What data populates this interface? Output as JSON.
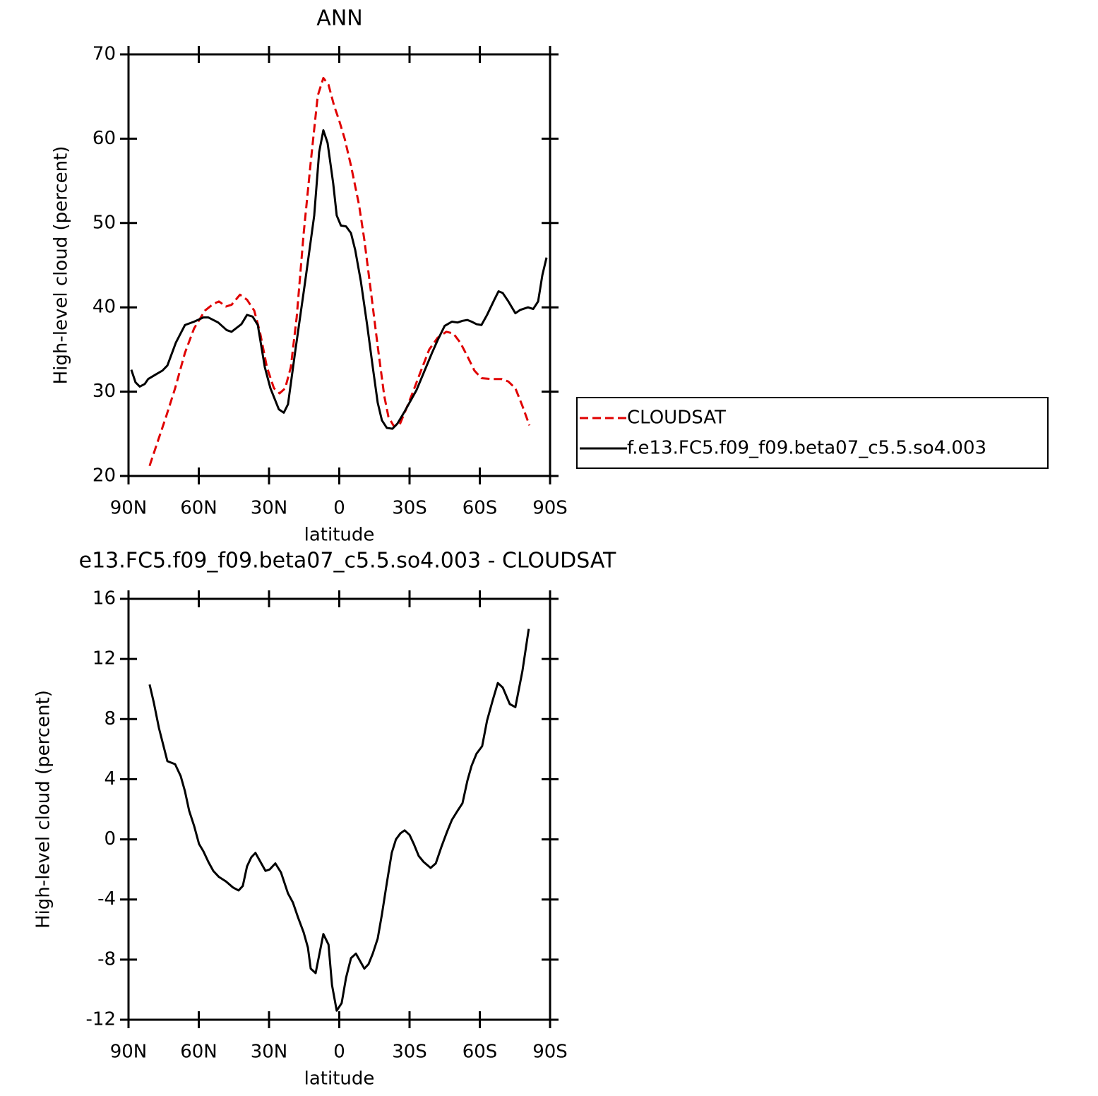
{
  "chart_data": [
    {
      "type": "line",
      "title": "ANN",
      "x_label": "latitude",
      "y_label": "High-level cloud (percent)",
      "xlim": [
        90,
        -90
      ],
      "xticks": [
        {
          "value": 90,
          "label": "90N"
        },
        {
          "value": 60,
          "label": "60N"
        },
        {
          "value": 30,
          "label": "30N"
        },
        0,
        {
          "value": -30,
          "label": "30S"
        },
        {
          "value": -60,
          "label": "60S"
        },
        {
          "value": -90,
          "label": "90S"
        }
      ],
      "ylim": [
        20,
        70
      ],
      "yticks": [
        20,
        30,
        40,
        50,
        60,
        70
      ],
      "legend": "right",
      "series": [
        {
          "name": "CLOUDSAT",
          "color": "#e00000",
          "line_style": "dashed",
          "x": [
            81,
            78,
            74,
            70.1,
            65.9,
            62,
            57.4,
            53.8,
            51.4,
            48.4,
            46,
            42.4,
            39.4,
            36.3,
            33.9,
            30.9,
            27.9,
            25.5,
            23.1,
            20.7,
            18.2,
            15.2,
            12.2,
            9.2,
            6.8,
            4.6,
            2.2,
            0.1,
            -2.3,
            -5,
            -8.4,
            -10.7,
            -13.4,
            -16.4,
            -19.2,
            -21,
            -23.3,
            -25.8,
            -28.5,
            -31.5,
            -34.5,
            -38.4,
            -42,
            -45.7,
            -48.7,
            -51.7,
            -54.7,
            -57.7,
            -60.7,
            -64.6,
            -69.2,
            -72.2,
            -75.2,
            -78.2,
            -81.2
          ],
          "values": [
            21.2,
            23.7,
            27,
            30.4,
            34.6,
            37.5,
            39.6,
            40.4,
            40.7,
            40.1,
            40.3,
            41.5,
            40.9,
            39.6,
            37.1,
            32.9,
            30.4,
            29.8,
            30.4,
            32.9,
            38.8,
            48.8,
            57.2,
            65.1,
            67.2,
            66.4,
            63.9,
            62.2,
            60,
            56.8,
            52.2,
            48,
            42.1,
            35.4,
            29.5,
            27,
            25.9,
            26.1,
            27.9,
            30,
            32.2,
            35,
            36.4,
            37.1,
            36.9,
            35.8,
            34.2,
            32.5,
            31.6,
            31.5,
            31.5,
            31.2,
            30.4,
            28.3,
            26
          ]
        },
        {
          "name": "f.e13.FC5.f09_f09.beta07_c5.5.so4.003",
          "color": "#000000",
          "line_style": "solid",
          "x": [
            88.8,
            87,
            85.2,
            83.1,
            81.6,
            78,
            75.5,
            73.4,
            69.8,
            65.9,
            62,
            58,
            55.9,
            51.7,
            48.1,
            46,
            41.8,
            39.4,
            37,
            34.8,
            31.8,
            29.4,
            25.8,
            23.7,
            21.9,
            18.9,
            14.6,
            10.7,
            8.6,
            6.8,
            5,
            2.6,
            1.1,
            -0.7,
            -2.9,
            -5,
            -6.8,
            -9.2,
            -11.9,
            -14.3,
            -16.4,
            -18.2,
            -20.3,
            -22.7,
            -24.8,
            -27.6,
            -30,
            -33,
            -36,
            -39.6,
            -42,
            -45,
            -48.1,
            -50.5,
            -52.6,
            -54.7,
            -56.5,
            -58.6,
            -60.7,
            -63.1,
            -66.2,
            -68,
            -69.8,
            -72.2,
            -75.2,
            -77.3,
            -80.6,
            -82.8,
            -84.9,
            -86.7,
            -88.5
          ],
          "values": [
            32.6,
            31.1,
            30.6,
            30.9,
            31.5,
            32.1,
            32.5,
            33.1,
            35.8,
            37.9,
            38.3,
            38.8,
            38.8,
            38.2,
            37.3,
            37.1,
            38,
            39.1,
            38.9,
            37.9,
            32.9,
            30.4,
            27.9,
            27.5,
            28.5,
            34.6,
            43,
            50.9,
            58.4,
            61,
            59.5,
            54.7,
            50.9,
            49.7,
            49.6,
            48.8,
            46.8,
            43.1,
            37.9,
            32.9,
            28.7,
            26.6,
            25.7,
            25.6,
            26.2,
            27.5,
            28.7,
            30.2,
            32.2,
            34.6,
            36.1,
            37.8,
            38.3,
            38.2,
            38.4,
            38.5,
            38.3,
            38,
            37.9,
            39.1,
            40.9,
            41.9,
            41.7,
            40.7,
            39.3,
            39.7,
            40,
            39.8,
            40.7,
            43.8,
            45.9
          ]
        }
      ]
    },
    {
      "type": "line",
      "title": "e13.FC5.f09_f09.beta07_c5.5.so4.003 - CLOUDSAT",
      "x_label": "latitude",
      "y_label": "High-level cloud (percent)",
      "xlim": [
        90,
        -90
      ],
      "xticks": [
        {
          "value": 90,
          "label": "90N"
        },
        {
          "value": 60,
          "label": "60N"
        },
        {
          "value": 30,
          "label": "30N"
        },
        0,
        {
          "value": -30,
          "label": "30S"
        },
        {
          "value": -60,
          "label": "60S"
        },
        {
          "value": -90,
          "label": "90S"
        }
      ],
      "ylim": [
        -12,
        16
      ],
      "yticks": [
        -12,
        -8,
        -4,
        0,
        4,
        8,
        12,
        16
      ],
      "series": [
        {
          "color": "#000000",
          "line_style": "solid",
          "x": [
            81,
            79.2,
            77,
            75.2,
            73.4,
            70.1,
            67.7,
            65.9,
            64.1,
            62,
            59.9,
            58,
            55.9,
            53.8,
            51.4,
            48.4,
            45.4,
            43,
            41.2,
            39.4,
            37.6,
            35.8,
            33.3,
            31.5,
            29.7,
            27.3,
            24.9,
            21.9,
            19.8,
            17.6,
            15.2,
            13.4,
            12.2,
            10.1,
            6.8,
            4.6,
            3.1,
            1.1,
            -1,
            -2.9,
            -5,
            -7.1,
            -8.9,
            -10.7,
            -12.5,
            -14.3,
            -16.4,
            -18.2,
            -20.3,
            -22.4,
            -24.2,
            -26.1,
            -27.9,
            -30,
            -31.8,
            -33.9,
            -36,
            -39,
            -41.2,
            -43.6,
            -46,
            -48.1,
            -50.5,
            -52.6,
            -54.7,
            -56.5,
            -58.6,
            -61,
            -63.1,
            -65.6,
            -67.7,
            -69.8,
            -72.8,
            -75.2,
            -78.2,
            -80.9
          ],
          "values": [
            10.3,
            9.1,
            7.4,
            6.3,
            5.2,
            5,
            4.2,
            3.2,
            1.9,
            0.9,
            -0.3,
            -0.8,
            -1.5,
            -2.1,
            -2.5,
            -2.8,
            -3.2,
            -3.4,
            -3.1,
            -1.8,
            -1.2,
            -0.9,
            -1.6,
            -2.1,
            -2,
            -1.6,
            -2.2,
            -3.6,
            -4.2,
            -5.2,
            -6.2,
            -7.2,
            -8.6,
            -8.9,
            -6.3,
            -7,
            -9.7,
            -11.4,
            -10.9,
            -9.2,
            -7.9,
            -7.6,
            -8.1,
            -8.6,
            -8.3,
            -7.6,
            -6.6,
            -5,
            -2.9,
            -0.9,
            0,
            0.4,
            0.6,
            0.3,
            -0.3,
            -1.1,
            -1.5,
            -1.9,
            -1.6,
            -0.5,
            0.5,
            1.3,
            1.9,
            2.4,
            3.9,
            4.9,
            5.7,
            6.2,
            7.9,
            9.3,
            10.4,
            10.1,
            9,
            8.8,
            11.2,
            14
          ]
        }
      ]
    }
  ]
}
